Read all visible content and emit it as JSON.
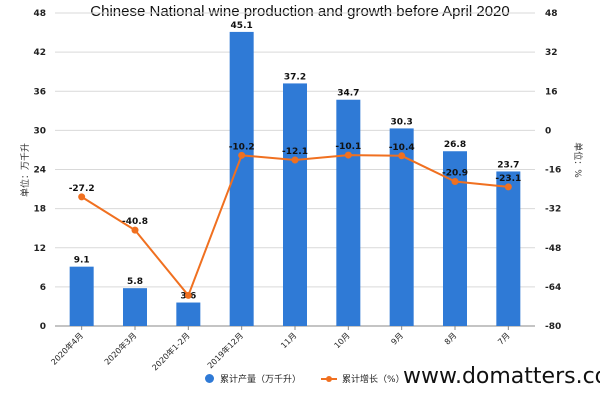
{
  "chart_data": {
    "type": "bar+line",
    "title": "Chinese National wine production and growth before April 2020",
    "categories": [
      "2020年4月",
      "2020年3月",
      "2020年1-2月",
      "2019年12月",
      "11月",
      "10月",
      "9月",
      "8月",
      "7月"
    ],
    "series": [
      {
        "name": "累计产量（万千升）",
        "type": "bar",
        "axis": "left",
        "color": "#2f7ad6",
        "values": [
          9.1,
          5.8,
          3.6,
          45.1,
          37.2,
          34.7,
          30.3,
          26.8,
          23.7
        ]
      },
      {
        "name": "累计增长（%）",
        "type": "line",
        "axis": "right",
        "color": "#f07020",
        "values": [
          -27.2,
          -40.8,
          -67.5,
          -10.2,
          -12.1,
          -10.1,
          -10.4,
          -20.9,
          -23.1
        ],
        "labels": [
          "-27.2",
          "-40.8",
          "",
          "-10.2",
          "-12.1",
          "-10.1",
          "-10.4",
          "-20.9",
          "-23.1"
        ]
      }
    ],
    "ylabel_left": "单位：万千升",
    "ylabel_right": "单位：%",
    "ylim_left": [
      0,
      48
    ],
    "yticks_left": [
      0,
      6,
      12,
      18,
      24,
      30,
      36,
      42,
      48
    ],
    "ylim_right": [
      -80,
      48
    ],
    "yticks_right": [
      -80,
      -64,
      -48,
      -32,
      -16,
      0,
      16,
      32,
      48
    ],
    "grid": true,
    "legend_position": "bottom"
  },
  "legend": {
    "bar_label": "累计产量（万千升）",
    "line_label": "累计增长（%）"
  },
  "watermark": {
    "site": "www.domatters.com"
  }
}
